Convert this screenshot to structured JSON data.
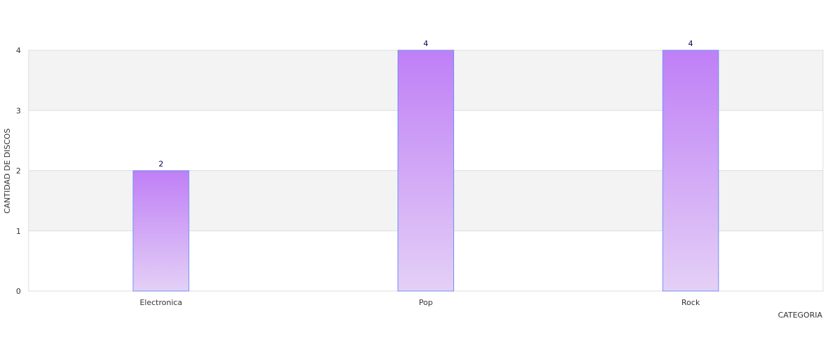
{
  "chart_data": {
    "type": "bar",
    "categories": [
      "Electronica",
      "Pop",
      "Rock"
    ],
    "values": [
      2,
      4,
      4
    ],
    "title": "",
    "xlabel": "CATEGORIA",
    "ylabel": "CANTIDAD DE DISCOS",
    "ylim": [
      0,
      4
    ],
    "yticks": [
      0,
      1,
      2,
      3,
      4
    ],
    "data_labels": [
      "2",
      "4",
      "4"
    ],
    "grid": true,
    "legend": "none",
    "colors": {
      "bar_top": "#bf7ff6",
      "bar_bottom": "#e4d0f6",
      "bar_border": "#6f92f2",
      "band_fill": "#f3f3f3",
      "grid_line": "#dddddd",
      "label_color": "#00005a"
    }
  }
}
